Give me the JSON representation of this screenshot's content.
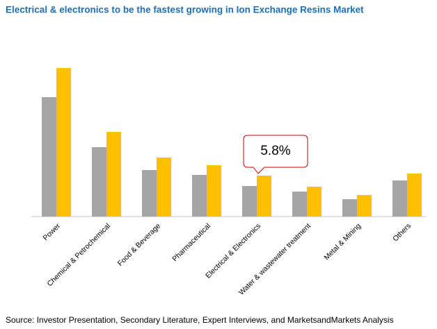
{
  "chart_data": {
    "type": "bar",
    "title": "Electrical & electronics to be the fastest growing in Ion Exchange Resins Market",
    "categories": [
      "Power",
      "Chemical & Petrochemical",
      "Food & Beverage",
      "Pharmaceutical",
      "Electrical & Electronics",
      "Water & wastewater treatment",
      "Metal & Mining",
      "Others"
    ],
    "series": [
      {
        "color": "#a5a5a5",
        "values": [
          172,
          100,
          67,
          60,
          44,
          36,
          25,
          52
        ]
      },
      {
        "color": "#ffc000",
        "values": [
          214,
          122,
          85,
          74,
          59,
          43,
          31,
          62
        ]
      }
    ],
    "ylim": [
      0,
      220
    ],
    "annotation": "5.8%",
    "source": "Source: Investor Presentation, Secondary Literature, Expert Interviews, and MarketsandMarkets Analysis"
  }
}
